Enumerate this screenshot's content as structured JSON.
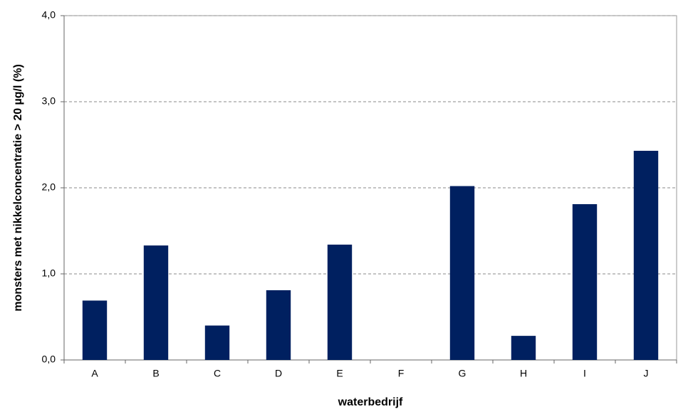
{
  "chart_data": {
    "type": "bar",
    "x_label": "waterbedrijf",
    "y_label": "monsters met nikkelconcentratie > 20 µg/l (%)",
    "categories": [
      "A",
      "B",
      "C",
      "D",
      "E",
      "F",
      "G",
      "H",
      "I",
      "J"
    ],
    "values": [
      0.69,
      1.33,
      0.4,
      0.81,
      1.34,
      0,
      2.02,
      0.28,
      1.81,
      2.43
    ],
    "color": "#002060",
    "ylim": [
      0,
      4
    ],
    "yticks": [
      {
        "value": 0,
        "label": "0,0"
      },
      {
        "value": 1,
        "label": "1,0"
      },
      {
        "value": 2,
        "label": "2,0"
      },
      {
        "value": 3,
        "label": "3,0"
      },
      {
        "value": 4,
        "label": "4,0"
      }
    ],
    "grid": true
  }
}
